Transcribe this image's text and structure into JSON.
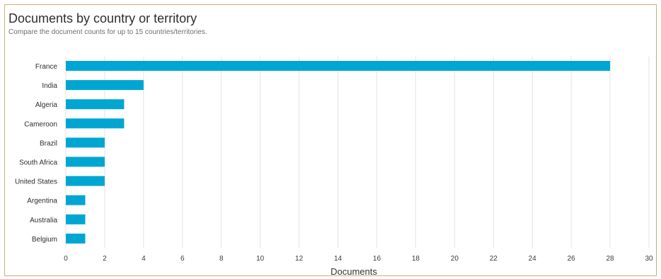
{
  "chart_data": {
    "type": "bar",
    "orientation": "horizontal",
    "title": "Documents by country or territory",
    "subtitle": "Compare the document counts for up to 15 countries/territories.",
    "xlabel": "Documents",
    "ylabel": "",
    "categories": [
      "France",
      "India",
      "Algeria",
      "Cameroon",
      "Brazil",
      "South Africa",
      "United States",
      "Argentina",
      "Australia",
      "Belgium"
    ],
    "values": [
      28,
      4,
      3,
      3,
      2,
      2,
      2,
      1,
      1,
      1
    ],
    "xlim": [
      0,
      30
    ],
    "xticks": [
      0,
      2,
      4,
      6,
      8,
      10,
      12,
      14,
      16,
      18,
      20,
      22,
      24,
      26,
      28,
      30
    ],
    "grid": "vertical",
    "legend": "none",
    "bar_color": "#00a6d2",
    "grid_color": "#e3e3e3"
  }
}
